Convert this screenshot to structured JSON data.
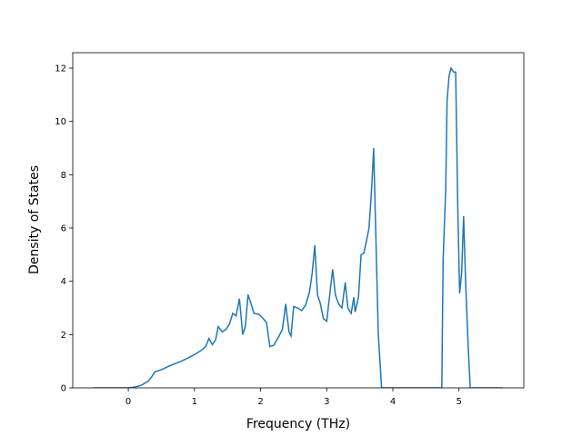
{
  "chart_data": {
    "type": "line",
    "xlabel": "Frequency (THz)",
    "ylabel": "Density of States",
    "x": [
      -0.53,
      0.0,
      0.1,
      0.2,
      0.3,
      0.35,
      0.4,
      0.5,
      0.6,
      0.7,
      0.8,
      0.9,
      1.0,
      1.1,
      1.17,
      1.22,
      1.27,
      1.32,
      1.36,
      1.42,
      1.48,
      1.53,
      1.58,
      1.63,
      1.68,
      1.73,
      1.77,
      1.81,
      1.85,
      1.9,
      1.98,
      2.04,
      2.09,
      2.14,
      2.2,
      2.27,
      2.33,
      2.38,
      2.43,
      2.46,
      2.5,
      2.56,
      2.62,
      2.68,
      2.74,
      2.78,
      2.82,
      2.86,
      2.9,
      2.95,
      3.0,
      3.06,
      3.09,
      3.13,
      3.18,
      3.23,
      3.28,
      3.32,
      3.37,
      3.41,
      3.43,
      3.48,
      3.52,
      3.56,
      3.6,
      3.64,
      3.68,
      3.71,
      3.78,
      3.83,
      4.0,
      4.5,
      4.74,
      4.76,
      4.8,
      4.82,
      4.85,
      4.88,
      4.92,
      4.95,
      4.98,
      5.01,
      5.04,
      5.07,
      5.1,
      5.14,
      5.17,
      5.4,
      5.66
    ],
    "series": [
      {
        "name": "DOS",
        "color": "#1f77b4",
        "values": [
          0,
          0,
          0.03,
          0.1,
          0.25,
          0.4,
          0.6,
          0.68,
          0.8,
          0.9,
          1.0,
          1.12,
          1.25,
          1.4,
          1.55,
          1.85,
          1.62,
          1.8,
          2.3,
          2.1,
          2.2,
          2.4,
          2.8,
          2.7,
          3.35,
          2.0,
          2.3,
          3.5,
          3.2,
          2.8,
          2.75,
          2.6,
          2.45,
          1.55,
          1.6,
          1.9,
          2.2,
          3.15,
          2.1,
          1.95,
          3.05,
          3.0,
          2.9,
          3.1,
          3.6,
          4.3,
          5.35,
          3.5,
          3.2,
          2.6,
          2.5,
          3.8,
          4.45,
          3.5,
          3.15,
          3.0,
          3.95,
          3.0,
          2.8,
          3.4,
          2.85,
          3.4,
          5.0,
          5.05,
          5.5,
          6.0,
          7.5,
          9.0,
          2.0,
          0,
          0,
          0,
          0,
          4.8,
          7.5,
          10.8,
          11.7,
          12.0,
          11.85,
          11.85,
          7.0,
          3.55,
          4.3,
          6.45,
          4.0,
          1.5,
          0,
          0,
          0
        ]
      }
    ],
    "xlim": [
      -0.84,
      5.98
    ],
    "ylim": [
      0,
      12.58
    ],
    "xticks": [
      0,
      1,
      2,
      3,
      4,
      5
    ],
    "yticks": [
      0,
      2,
      4,
      6,
      8,
      10,
      12
    ]
  }
}
